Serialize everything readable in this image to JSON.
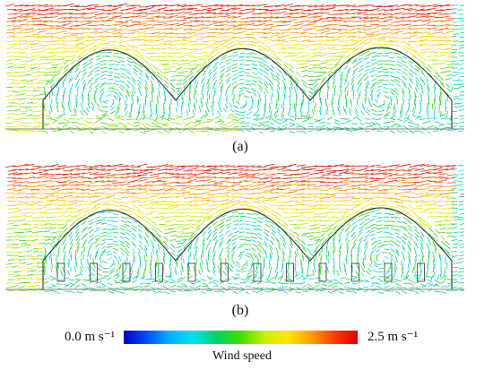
{
  "figure": {
    "panel_a_label": "(a)",
    "panel_b_label": "(b)",
    "colorbar": {
      "min_label": "0.0 m s⁻¹",
      "max_label": "2.5 m s⁻¹",
      "title": "Wind speed",
      "min": 0.0,
      "max": 2.5,
      "colors": [
        "#0000c8",
        "#0050ff",
        "#00b4ff",
        "#00e6e6",
        "#00d264",
        "#46dc00",
        "#c8f000",
        "#ffe600",
        "#ffa000",
        "#ff3c00",
        "#dc0000"
      ]
    },
    "panels": [
      {
        "id": "a",
        "plant_rows": 0
      },
      {
        "id": "b",
        "plant_rows": 12
      }
    ]
  }
}
